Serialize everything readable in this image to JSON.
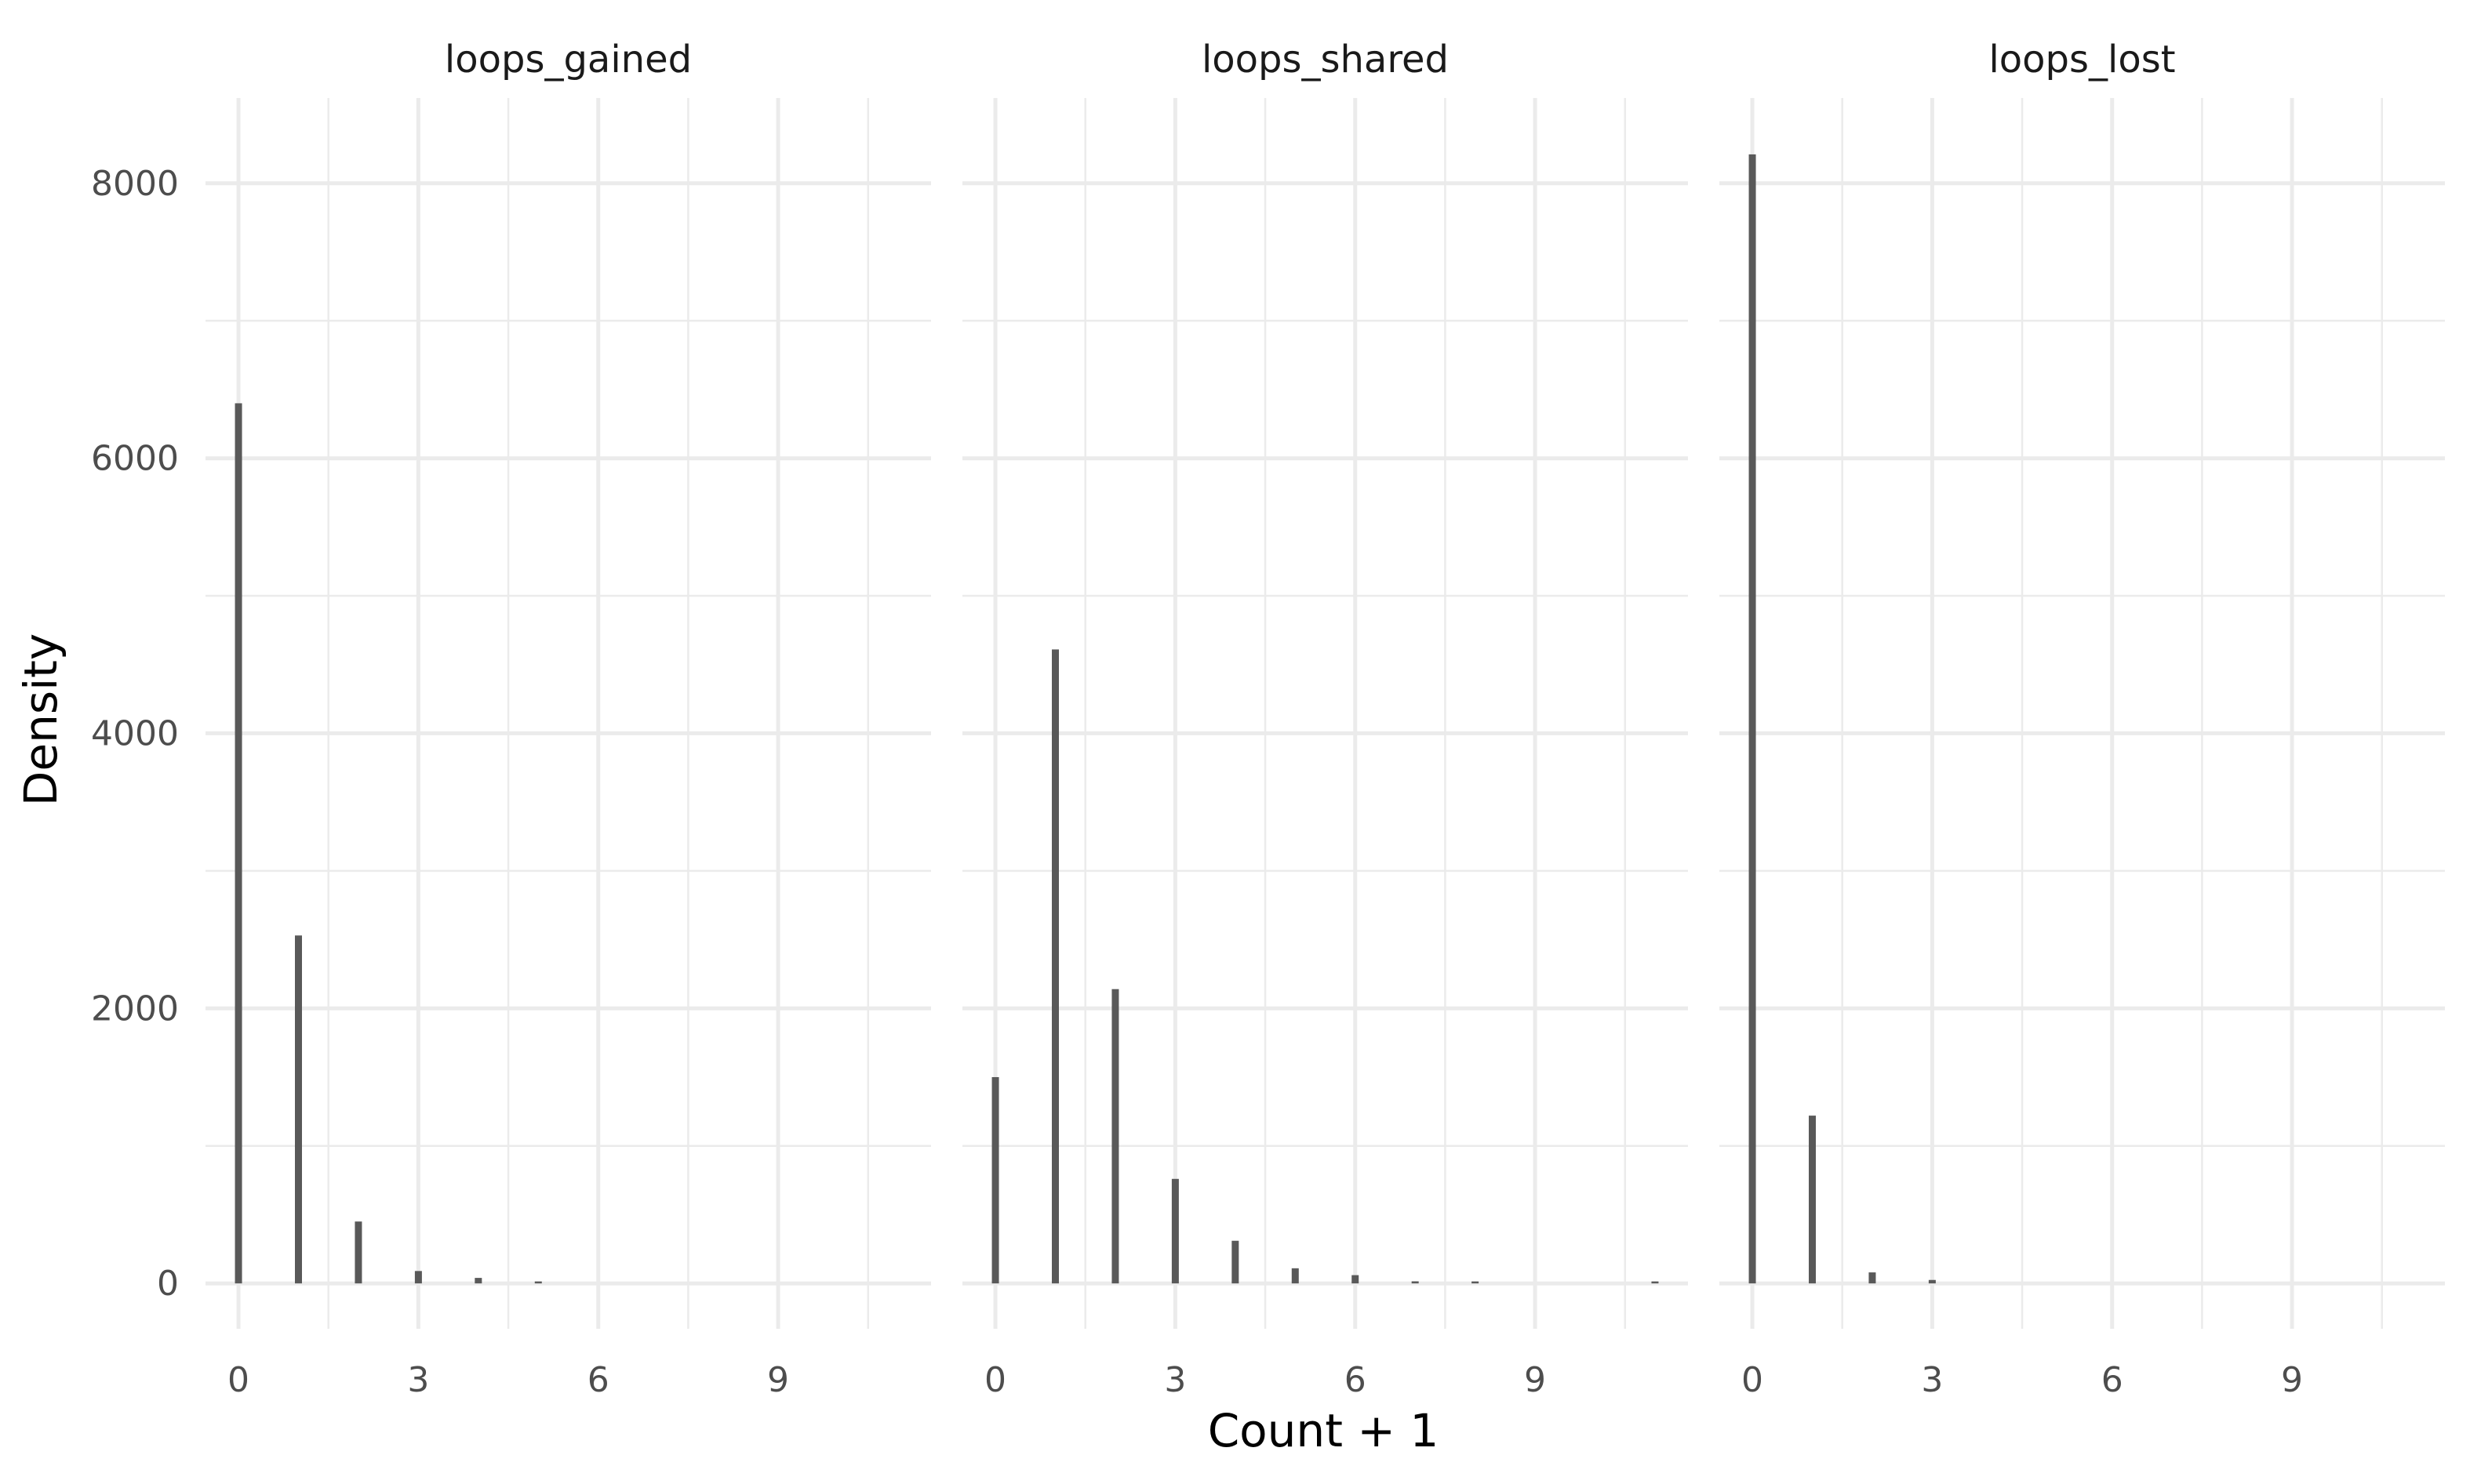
{
  "chart_data": {
    "type": "bar",
    "xlabel": "Count + 1",
    "ylabel": "Density",
    "xlim": [
      -0.55,
      11.55
    ],
    "ylim": [
      -330,
      8620
    ],
    "x_ticks": [
      0,
      3,
      6,
      9
    ],
    "y_ticks": [
      0,
      2000,
      4000,
      6000,
      8000
    ],
    "x_tick_labels": [
      "0",
      "3",
      "6",
      "9"
    ],
    "y_tick_labels": [
      "0",
      "2000",
      "4000",
      "6000",
      "8000"
    ],
    "grid": true,
    "legend": "none",
    "bar_color": "#595959",
    "panels": [
      {
        "name": "loops_gained",
        "x": [
          0,
          1,
          2,
          3,
          4,
          5
        ],
        "values": [
          6400,
          2530,
          450,
          90,
          40,
          10
        ]
      },
      {
        "name": "loops_shared",
        "x": [
          0,
          1,
          2,
          3,
          4,
          5,
          6,
          7,
          8,
          11
        ],
        "values": [
          1500,
          4610,
          2140,
          760,
          310,
          110,
          60,
          15,
          10,
          10
        ]
      },
      {
        "name": "loops_lost",
        "x": [
          0,
          1,
          2,
          3
        ],
        "values": [
          8210,
          1220,
          80,
          25
        ]
      }
    ]
  }
}
